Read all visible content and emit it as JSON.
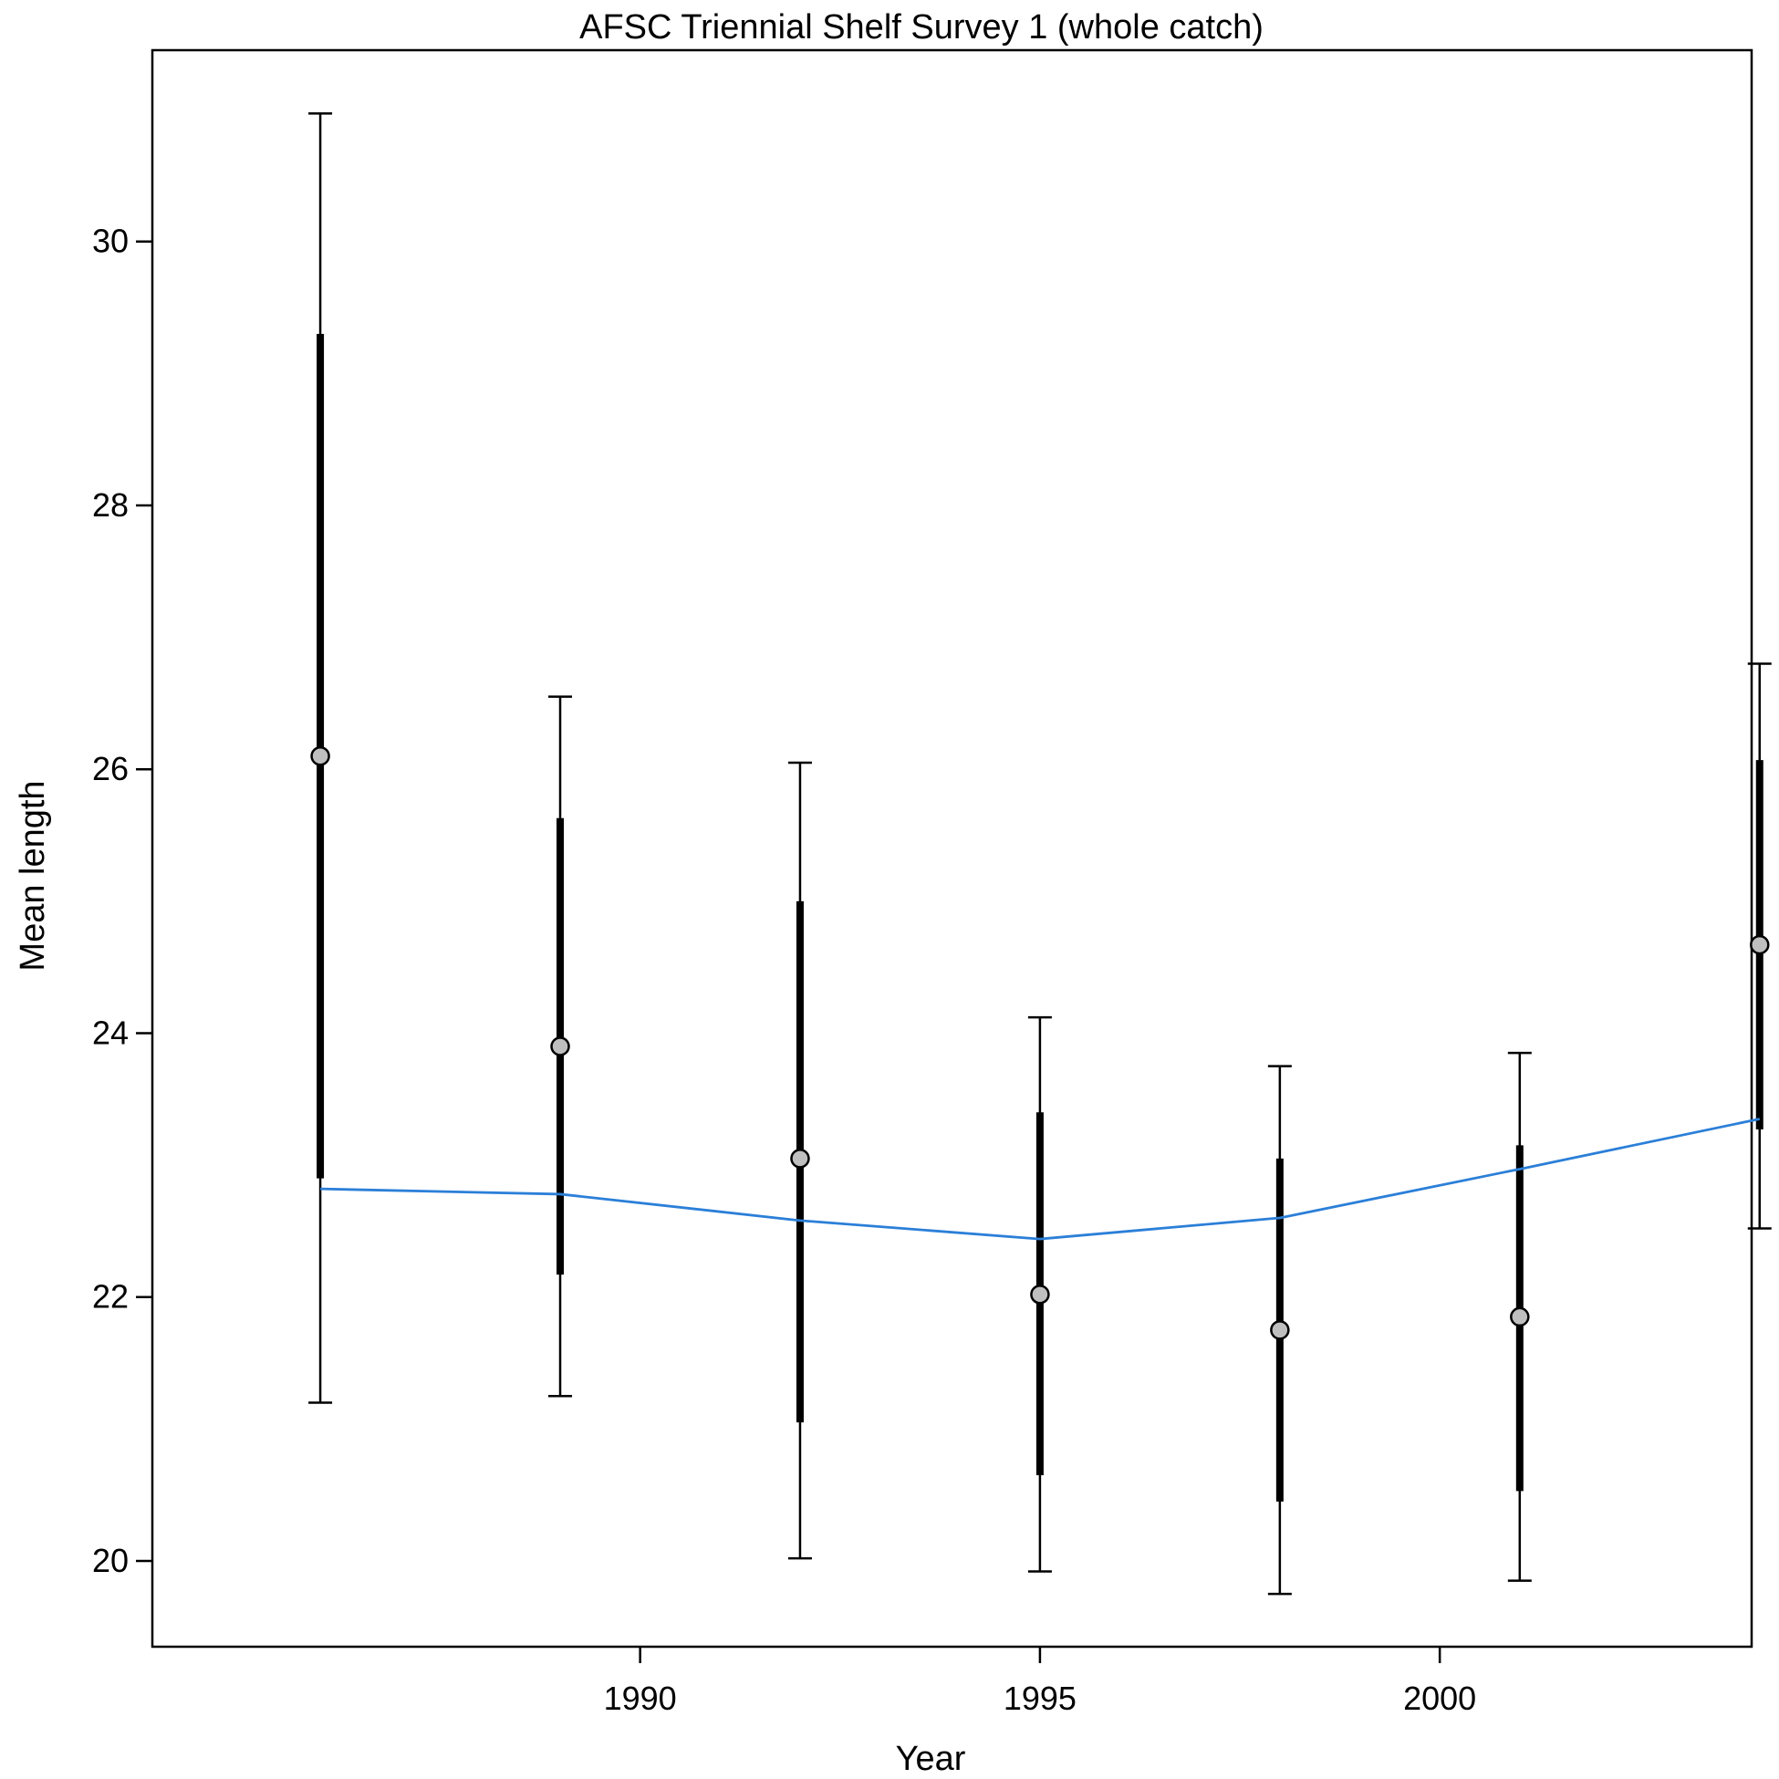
{
  "chart_data": {
    "type": "line",
    "title": "AFSC Triennial Shelf Survey 1 (whole catch)",
    "xlabel": "Year",
    "ylabel": "Mean length",
    "xlim": [
      1983.9,
      2003.9
    ],
    "ylim": [
      19.35,
      31.45
    ],
    "xticks": [
      1990,
      1995,
      2000
    ],
    "yticks": [
      20,
      22,
      24,
      26,
      28,
      30
    ],
    "grid": false,
    "observed": {
      "x": [
        1986,
        1989,
        1992,
        1995,
        1998,
        2001,
        2004
      ],
      "y": [
        26.1,
        23.9,
        23.05,
        22.02,
        21.75,
        21.85,
        24.67
      ],
      "inner_lower": [
        22.9,
        22.17,
        21.05,
        20.65,
        20.45,
        20.53,
        23.27
      ],
      "inner_upper": [
        29.3,
        25.63,
        25.0,
        23.4,
        23.05,
        23.15,
        26.07
      ],
      "outer_lower": [
        21.2,
        21.25,
        20.02,
        19.92,
        19.75,
        19.85,
        22.52
      ],
      "outer_upper": [
        30.97,
        26.55,
        26.05,
        24.12,
        23.75,
        23.85,
        26.8
      ]
    },
    "expected": {
      "x": [
        1986,
        1989,
        1992,
        1995,
        1998,
        2001,
        2004
      ],
      "y": [
        22.82,
        22.78,
        22.58,
        22.44,
        22.6,
        22.97,
        23.35
      ]
    },
    "colors": {
      "expected_line": "#2b7fd8",
      "points_fill": "#bfbfbf",
      "error_bars": "#000000"
    }
  }
}
